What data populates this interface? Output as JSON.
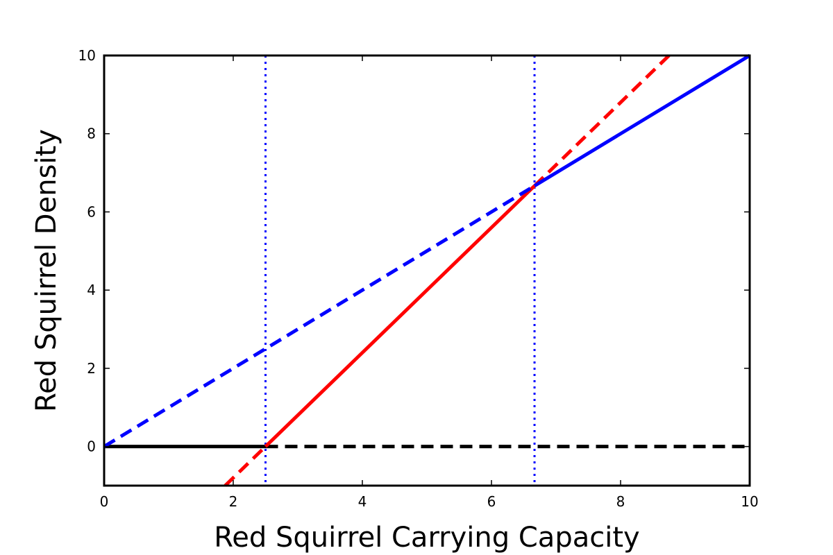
{
  "chart_data": {
    "type": "line",
    "xlabel": "Red Squirrel Carrying Capacity",
    "ylabel": "Red Squirrel Density",
    "xlim": [
      0,
      10
    ],
    "ylim": [
      -1,
      10
    ],
    "xticks": [
      0,
      2,
      4,
      6,
      8,
      10
    ],
    "yticks": [
      0,
      2,
      4,
      6,
      8,
      10
    ],
    "grid": false,
    "legend": "none",
    "series": [
      {
        "color": "#000000",
        "style": "solid",
        "points": [
          [
            0,
            0
          ],
          [
            2.5,
            0
          ]
        ]
      },
      {
        "color": "#000000",
        "style": "dashed",
        "points": [
          [
            2.5,
            0
          ],
          [
            10,
            0
          ]
        ]
      },
      {
        "color": "#ff0000",
        "style": "dashed",
        "points": [
          [
            1.875,
            -1
          ],
          [
            2.5,
            0
          ]
        ]
      },
      {
        "color": "#ff0000",
        "style": "solid",
        "points": [
          [
            2.5,
            0
          ],
          [
            6.667,
            6.667
          ]
        ]
      },
      {
        "color": "#ff0000",
        "style": "dashed",
        "points": [
          [
            6.667,
            6.667
          ],
          [
            8.75,
            10
          ]
        ]
      },
      {
        "color": "#0000ff",
        "style": "dashed",
        "points": [
          [
            0,
            0
          ],
          [
            6.667,
            6.667
          ]
        ]
      },
      {
        "color": "#0000ff",
        "style": "solid",
        "points": [
          [
            6.667,
            6.667
          ],
          [
            10,
            10
          ]
        ]
      }
    ],
    "vlines": [
      {
        "x": 2.5,
        "color": "#0000ff",
        "style": "dotted"
      },
      {
        "x": 6.667,
        "color": "#0000ff",
        "style": "dotted"
      }
    ]
  }
}
